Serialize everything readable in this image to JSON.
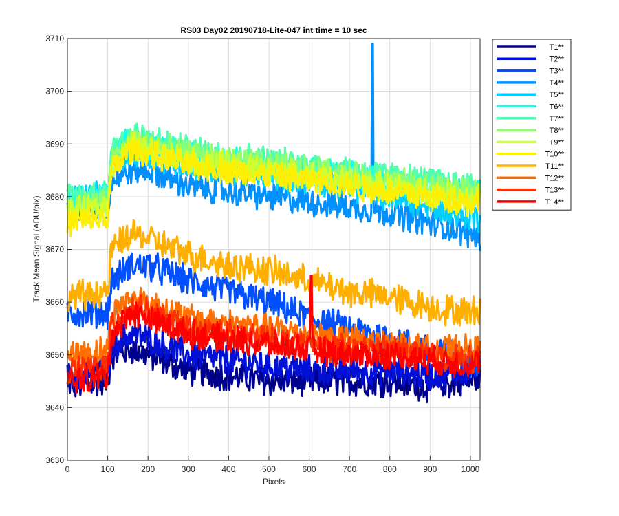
{
  "chart_data": {
    "type": "line",
    "title": "RS03 Day02 20190718-Lite-047 int time = 10 sec",
    "xlabel": "Pixels",
    "ylabel": "Track Mean Signal (ADU/pix)",
    "xlim": [
      0,
      1024
    ],
    "ylim": [
      3630,
      3710
    ],
    "xticks": [
      "0",
      "100",
      "200",
      "300",
      "400",
      "500",
      "600",
      "700",
      "800",
      "900",
      "1000"
    ],
    "yticks": [
      "3630",
      "3640",
      "3650",
      "3660",
      "3670",
      "3680",
      "3690",
      "3700",
      "3710"
    ],
    "grid": true,
    "legend_position": "outside-top-right",
    "x": [
      0,
      100,
      110,
      160,
      200,
      300,
      400,
      500,
      600,
      700,
      800,
      900,
      1000,
      1024
    ],
    "series": [
      {
        "name": "T1**",
        "color": "#00008f",
        "noise": 2.6,
        "values": [
          3644,
          3645,
          3650,
          3651,
          3650,
          3647,
          3646,
          3645,
          3645,
          3645,
          3645,
          3644,
          3645,
          3646
        ]
      },
      {
        "name": "T2**",
        "color": "#0010d6",
        "noise": 2.6,
        "values": [
          3646,
          3647,
          3652,
          3654,
          3653,
          3650,
          3649,
          3648,
          3647,
          3647,
          3647,
          3646,
          3647,
          3648
        ]
      },
      {
        "name": "T3**",
        "color": "#0050ff",
        "noise": 2.6,
        "values": [
          3658,
          3658,
          3664,
          3667,
          3667,
          3664,
          3662,
          3660,
          3657,
          3655,
          3653,
          3651,
          3649,
          3649
        ]
      },
      {
        "name": "T4**",
        "color": "#0090ff",
        "noise": 2.4,
        "values": [
          3678,
          3678,
          3683,
          3685,
          3685,
          3682,
          3681,
          3680,
          3679,
          3678,
          3677,
          3675,
          3673,
          3672
        ]
      },
      {
        "name": "T5**",
        "color": "#00cfff",
        "noise": 2.4,
        "values": [
          3680,
          3680,
          3686,
          3688,
          3688,
          3686,
          3685,
          3684,
          3683,
          3682,
          3680,
          3678,
          3676,
          3676
        ]
      },
      {
        "name": "T6**",
        "color": "#10ffef",
        "noise": 2.4,
        "values": [
          3679,
          3680,
          3688,
          3691,
          3690,
          3688,
          3687,
          3686,
          3685,
          3684,
          3683,
          3682,
          3681,
          3681
        ]
      },
      {
        "name": "T7**",
        "color": "#50ffaf",
        "noise": 2.4,
        "values": [
          3680,
          3681,
          3689,
          3692,
          3691,
          3689,
          3688,
          3687,
          3686,
          3685,
          3684,
          3683,
          3682,
          3682
        ]
      },
      {
        "name": "T8**",
        "color": "#8fff70",
        "noise": 2.4,
        "values": [
          3678,
          3679,
          3687,
          3690,
          3690,
          3688,
          3687,
          3686,
          3685,
          3684,
          3683,
          3682,
          3681,
          3681
        ]
      },
      {
        "name": "T9**",
        "color": "#cfff30",
        "noise": 2.4,
        "values": [
          3677,
          3678,
          3686,
          3690,
          3689,
          3687,
          3686,
          3685,
          3684,
          3683,
          3682,
          3681,
          3680,
          3680
        ]
      },
      {
        "name": "T10**",
        "color": "#ffef00",
        "noise": 2.4,
        "values": [
          3675,
          3676,
          3685,
          3689,
          3688,
          3686,
          3685,
          3684,
          3683,
          3682,
          3681,
          3680,
          3679,
          3679
        ]
      },
      {
        "name": "T11**",
        "color": "#ffaf00",
        "noise": 2.6,
        "values": [
          3661,
          3662,
          3670,
          3673,
          3672,
          3669,
          3667,
          3666,
          3664,
          3662,
          3661,
          3659,
          3658,
          3659
        ]
      },
      {
        "name": "T12**",
        "color": "#ff7000",
        "noise": 2.4,
        "values": [
          3650,
          3651,
          3658,
          3661,
          3660,
          3657,
          3656,
          3655,
          3654,
          3653,
          3652,
          3651,
          3651,
          3651
        ]
      },
      {
        "name": "T13**",
        "color": "#ff3000",
        "noise": 2.4,
        "values": [
          3647,
          3648,
          3656,
          3659,
          3658,
          3655,
          3654,
          3653,
          3652,
          3651,
          3651,
          3650,
          3649,
          3650
        ]
      },
      {
        "name": "T14**",
        "color": "#ff0000",
        "noise": 2.4,
        "values": [
          3645,
          3646,
          3654,
          3658,
          3657,
          3654,
          3653,
          3652,
          3651,
          3650,
          3650,
          3649,
          3648,
          3649
        ]
      }
    ],
    "annotations": [
      {
        "series": "T4**",
        "x": 757,
        "y": 3709,
        "note": "spike"
      },
      {
        "series": "T14**",
        "x": 605,
        "y": 3665,
        "note": "spike"
      }
    ]
  }
}
